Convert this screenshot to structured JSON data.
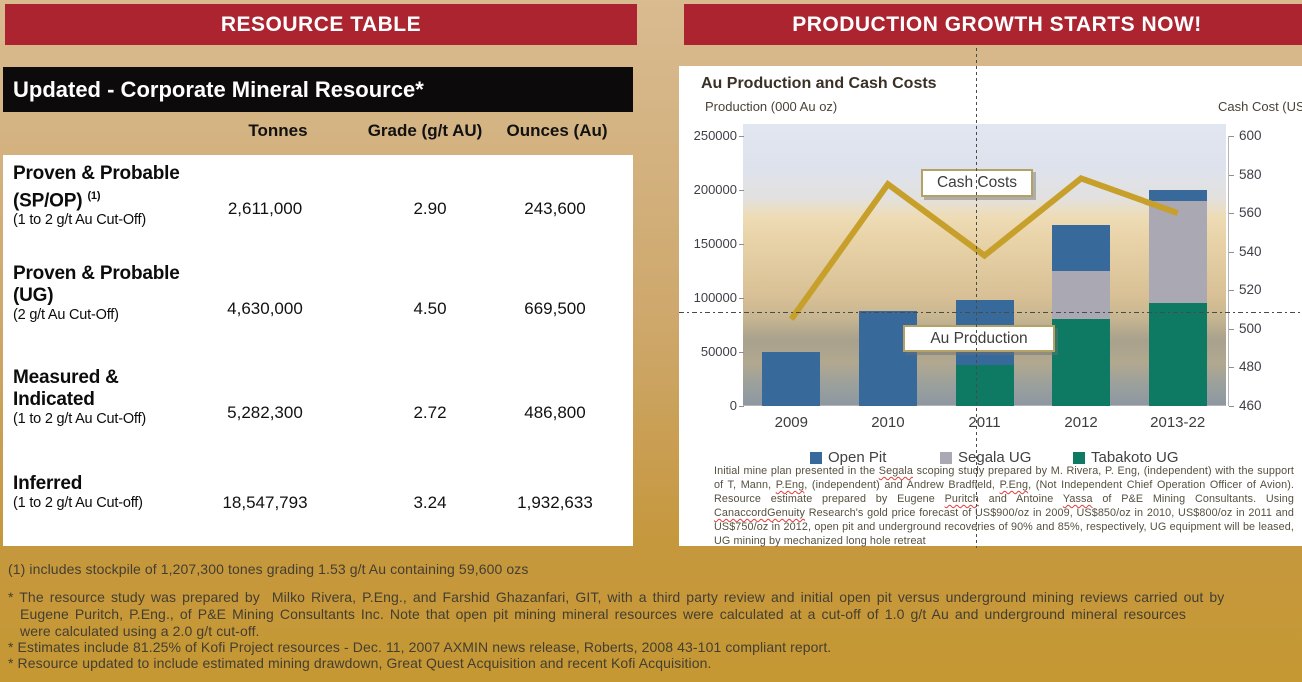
{
  "left_panel": {
    "header": "RESOURCE TABLE",
    "table_title": "Updated - Corporate Mineral Resource*",
    "columns": [
      "Tonnes",
      "Grade (g/t AU)",
      "Ounces (Au)"
    ],
    "rows": [
      {
        "name_line1": "Proven & Probable",
        "name_line2": "(SP/OP)",
        "superscript": "(1)",
        "cutoff": "(1 to 2 g/t Au Cut-Off)",
        "tonnes": "2,611,000",
        "grade": "2.90",
        "ounces": "243,600"
      },
      {
        "name_line1": "Proven & Probable",
        "name_line2": "(UG)",
        "superscript": "",
        "cutoff": "(2 g/t Au Cut-Off)",
        "tonnes": "4,630,000",
        "grade": "4.50",
        "ounces": "669,500"
      },
      {
        "name_line1": "Measured &",
        "name_line2": "Indicated",
        "superscript": "",
        "cutoff": "(1 to 2 g/t Au Cut-Off)",
        "tonnes": "5,282,300",
        "grade": "2.72",
        "ounces": "486,800"
      },
      {
        "name_line1": "Inferred",
        "name_line2": "",
        "superscript": "",
        "cutoff": "(1 to 2 g/t Au Cut-off)",
        "tonnes": "18,547,793",
        "grade": "3.24",
        "ounces": "1,932,633"
      }
    ]
  },
  "footnotes": {
    "note1": "(1) includes stockpile of 1,207,300 tones grading 1.53 g/t Au containing 59,600 ozs",
    "bullet1_line1": "* The resource study was prepared by  Milko Rivera, P.Eng., and Farshid Ghazanfari, GIT, with a third party review and initial open pit versus underground mining reviews carried out by",
    "bullet1_line2": "Eugene Puritch, P.Eng., of P&E Mining Consultants Inc. Note that open pit mining mineral resources were calculated at a cut-off of 1.0 g/t Au and underground mineral resources",
    "bullet1_line3": "were calculated using a 2.0 g/t cut-off.",
    "bullet2": "* Estimates include 81.25% of Kofi Project resources - Dec. 11, 2007 AXMIN news release, Roberts, 2008 43-101 compliant report.",
    "bullet3": "* Resource updated to include estimated mining drawdown, Great Quest Acquisition and recent Kofi Acquisition."
  },
  "right_panel": {
    "header": "PRODUCTION GROWTH STARTS NOW!",
    "chart_title": "Au Production and Cash Costs",
    "left_axis_title": "Production (000 Au oz)",
    "right_axis_title": "Cash Cost (US$/oz)",
    "label_cash_costs": "Cash Costs",
    "label_au_production": "Au Production",
    "disclaimer_segments": [
      {
        "t": "Initial mine plan presented in the "
      },
      {
        "t": "Segala",
        "sq": true
      },
      {
        "t": " scoping study prepared by M. Rivera, P. Eng, (independent) with the support of T, Mann, "
      },
      {
        "t": "P.Eng",
        "sq": true
      },
      {
        "t": ", (independent) and Andrew Bradfield, "
      },
      {
        "t": "P.Eng",
        "sq": true
      },
      {
        "t": ", (Not Independent Chief Operation Officer of Avion). Resource estimate prepared by Eugene "
      },
      {
        "t": "Puritch",
        "sq": true
      },
      {
        "t": " and Antoine "
      },
      {
        "t": "Yassa",
        "sq": true
      },
      {
        "t": " of P&E Mining Consultants. Using "
      },
      {
        "t": "CanaccordGenuity",
        "sq": true
      },
      {
        "t": " Research's gold price forecast of US$900/oz in 2009, US$850/oz in 2010, US$800/oz in 2011 and US$750/oz in 2012, open pit and underground recoveries of 90% and 85%, respectively, UG equipment will be leased, UG mining by mechanized long hole retreat"
      }
    ]
  },
  "chart_data": {
    "type": "bar",
    "subtype": "stacked-bars-with-line-overlay",
    "title": "Au Production and Cash Costs",
    "categories": [
      "2009",
      "2010",
      "2011",
      "2012",
      "2013-22"
    ],
    "series": [
      {
        "name": "Open Pit",
        "color": "#38699b",
        "values": [
          50000,
          88000,
          60000,
          43000,
          10000
        ]
      },
      {
        "name": "Segala UG",
        "color": "#a9a8b3",
        "values": [
          0,
          0,
          0,
          44000,
          95000
        ]
      },
      {
        "name": "Tabakoto UG",
        "color": "#0f7a64",
        "values": [
          0,
          0,
          38000,
          81000,
          95000
        ]
      }
    ],
    "stack_order_bottom_to_top": [
      "Tabakoto UG",
      "Segala UG",
      "Open Pit"
    ],
    "line_series": {
      "name": "Cash Costs",
      "color": "#c7a02b",
      "axis": "right",
      "values": [
        505,
        575,
        538,
        578,
        560
      ]
    },
    "left_axis": {
      "title": "Production (000 Au oz)",
      "min": 0,
      "max": 250000,
      "ticks": [
        0,
        50000,
        100000,
        150000,
        200000,
        250000
      ]
    },
    "right_axis": {
      "title": "Cash Cost (US$/oz)",
      "min": 460,
      "max": 600,
      "ticks": [
        460,
        480,
        500,
        520,
        540,
        560,
        580,
        600
      ]
    },
    "legend": [
      "Open Pit",
      "Segala UG",
      "Tabakoto UG"
    ],
    "legend_position": "bottom",
    "grid": false
  },
  "colors": {
    "header_red": "#ab2430",
    "title_bar_black": "#0c0a0b",
    "background_gold_top": "#d9bb90",
    "background_gold_bottom": "#c59833",
    "open_pit_blue": "#38699b",
    "segala_gray": "#a9a8b3",
    "tabakoto_green": "#0f7a64",
    "cash_cost_line_gold": "#c7a02b",
    "callout_border_tan": "#b3a264"
  }
}
